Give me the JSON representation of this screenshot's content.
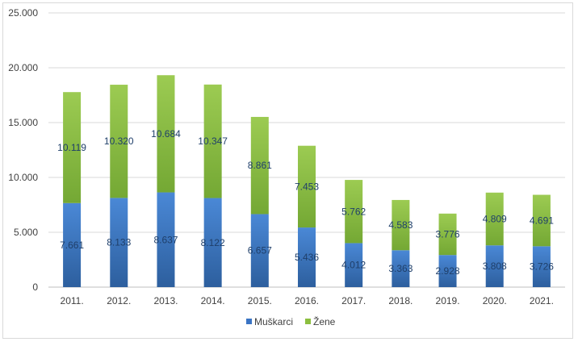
{
  "chart_data": {
    "type": "bar",
    "stacked": true,
    "title": "",
    "xlabel": "",
    "ylabel": "",
    "ylim": [
      0,
      25000
    ],
    "y_ticks": [
      "0",
      "5.000",
      "10.000",
      "15.000",
      "20.000",
      "25.000"
    ],
    "y_tick_values": [
      0,
      5000,
      10000,
      15000,
      20000,
      25000
    ],
    "grid": true,
    "legend_position": "bottom",
    "categories": [
      "2011.",
      "2012.",
      "2013.",
      "2014.",
      "2015.",
      "2016.",
      "2017.",
      "2018.",
      "2019.",
      "2020.",
      "2021."
    ],
    "series": [
      {
        "name": "Muškarci",
        "color": "#3a74c4",
        "values": [
          7661,
          8133,
          8637,
          8122,
          6657,
          5436,
          4012,
          3363,
          2928,
          3808,
          3726
        ],
        "labels": [
          "7.661",
          "8.133",
          "8.637",
          "8.122",
          "6.657",
          "5.436",
          "4.012",
          "3.363",
          "2.928",
          "3.808",
          "3.726"
        ]
      },
      {
        "name": "Žene",
        "color": "#8cbf3f",
        "values": [
          10119,
          10320,
          10684,
          10347,
          8861,
          7453,
          5762,
          4583,
          3776,
          4809,
          4691
        ],
        "labels": [
          "10.119",
          "10.320",
          "10.684",
          "10.347",
          "8.861",
          "7.453",
          "5.762",
          "4.583",
          "3.776",
          "4.809",
          "4.691"
        ]
      }
    ]
  }
}
